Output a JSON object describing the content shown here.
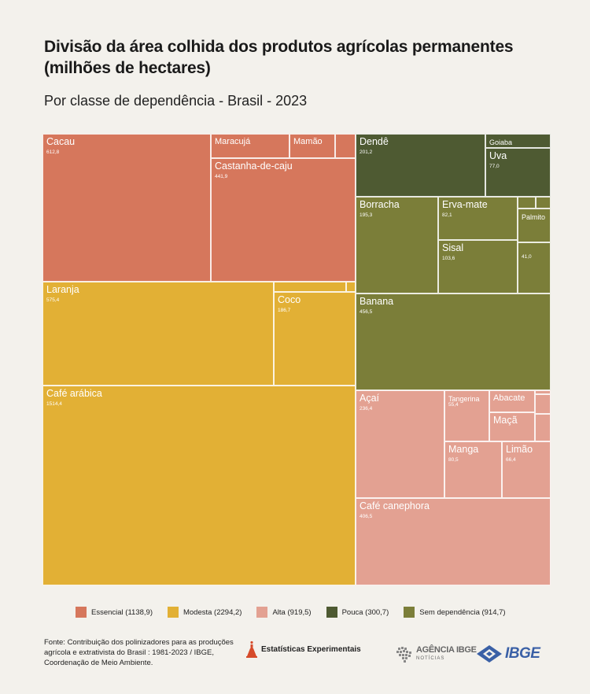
{
  "chart_data": {
    "type": "treemap",
    "title": "Divisão da área colhida dos produtos agrícolas permanentes (milhões de hectares)",
    "subtitle": "Por classe de dependência - Brasil - 2023",
    "classes": [
      {
        "key": "essencial",
        "label": "Essencial (1138,9)",
        "color": "#d6775c",
        "total": 1138.9
      },
      {
        "key": "modesta",
        "label": "Modesta (2294,2)",
        "color": "#e2b035",
        "total": 2294.2
      },
      {
        "key": "alta",
        "label": "Alta (919,5)",
        "color": "#e3a192",
        "total": 919.5
      },
      {
        "key": "pouca",
        "label": "Pouca (300,7)",
        "color": "#4e5a32",
        "total": 300.7
      },
      {
        "key": "sem",
        "label": "Sem dependência (914,7)",
        "color": "#7b7e39",
        "total": 914.7
      }
    ],
    "items": [
      {
        "name": "Cacau",
        "value": 612.8,
        "value_label": "612,8",
        "class": "essencial"
      },
      {
        "name": "Maracujá",
        "value": null,
        "value_label": "",
        "class": "essencial"
      },
      {
        "name": "Mamão",
        "value": null,
        "value_label": "",
        "class": "essencial"
      },
      {
        "name": "",
        "value": null,
        "value_label": "",
        "class": "essencial"
      },
      {
        "name": "Castanha-de-caju",
        "value": 441.9,
        "value_label": "441,9",
        "class": "essencial"
      },
      {
        "name": "Laranja",
        "value": 575.4,
        "value_label": "575,4",
        "class": "modesta"
      },
      {
        "name": "",
        "value": null,
        "value_label": "",
        "class": "modesta"
      },
      {
        "name": "",
        "value": null,
        "value_label": "",
        "class": "modesta"
      },
      {
        "name": "Coco",
        "value": 186.7,
        "value_label": "186,7",
        "class": "modesta"
      },
      {
        "name": "Café arábica",
        "value": 1514.4,
        "value_label": "1514,4",
        "class": "modesta"
      },
      {
        "name": "Dendê",
        "value": 201.2,
        "value_label": "201,2",
        "class": "pouca"
      },
      {
        "name": "Goiaba",
        "value": null,
        "value_label": "",
        "class": "pouca"
      },
      {
        "name": "Uva",
        "value": 77.0,
        "value_label": "77,0",
        "class": "pouca"
      },
      {
        "name": "Borracha",
        "value": 195.3,
        "value_label": "195,3",
        "class": "sem"
      },
      {
        "name": "Erva-mate",
        "value": 82.1,
        "value_label": "82,1",
        "class": "sem"
      },
      {
        "name": "",
        "value": null,
        "value_label": "",
        "class": "sem"
      },
      {
        "name": "",
        "value": null,
        "value_label": "",
        "class": "sem"
      },
      {
        "name": "Palmito",
        "value": null,
        "value_label": "",
        "class": "sem"
      },
      {
        "name": "Sisal",
        "value": 103.6,
        "value_label": "103,6",
        "class": "sem"
      },
      {
        "name": "",
        "value": 41.0,
        "value_label": "41,0",
        "class": "sem"
      },
      {
        "name": "Banana",
        "value": 456.5,
        "value_label": "456,5",
        "class": "sem"
      },
      {
        "name": "Açaí",
        "value": 236.4,
        "value_label": "236,4",
        "class": "alta"
      },
      {
        "name": "Tangerina",
        "value": 55.4,
        "value_label": "55,4",
        "class": "alta"
      },
      {
        "name": "Abacate",
        "value": null,
        "value_label": "",
        "class": "alta"
      },
      {
        "name": "Maçã",
        "value": null,
        "value_label": "",
        "class": "alta"
      },
      {
        "name": "",
        "value": null,
        "value_label": "",
        "class": "alta"
      },
      {
        "name": "",
        "value": null,
        "value_label": "",
        "class": "alta"
      },
      {
        "name": "",
        "value": null,
        "value_label": "",
        "class": "alta"
      },
      {
        "name": "Manga",
        "value": 80.5,
        "value_label": "80,5",
        "class": "alta"
      },
      {
        "name": "Limão",
        "value": 66.4,
        "value_label": "66,4",
        "class": "alta"
      },
      {
        "name": "Café canephora",
        "value": 406.5,
        "value_label": "406,5",
        "class": "alta"
      }
    ]
  },
  "footer": {
    "source": "Fonte: Contribuição dos polinizadores para as produções agrícola e extrativista do Brasil : 1981-2023 / IBGE, Coordenação de Meio Ambiente.",
    "experimental": "Estatísticas Experimentais",
    "agencia_main": "AGÊNCIA IBGE",
    "agencia_sub": "NOTÍCIAS",
    "ibge": "IBGE"
  }
}
